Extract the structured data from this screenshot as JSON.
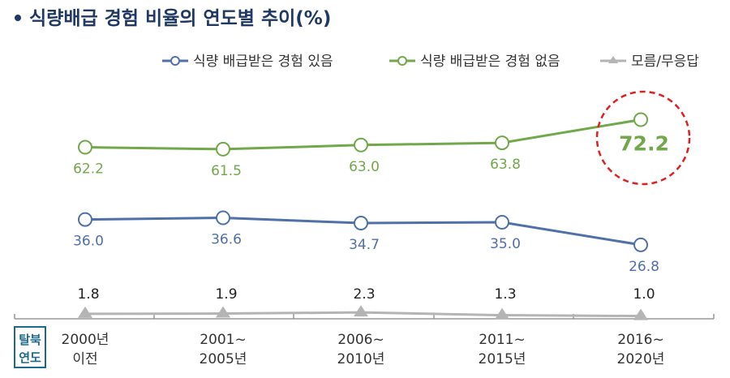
{
  "chart_data": {
    "type": "line",
    "title": "식량배급 경험 비율의 연도별 추이(%)",
    "xlabel": "탈북 연도",
    "categories": [
      "2000년\n이전",
      "2001~\n2005년",
      "2006~\n2010년",
      "2011~\n2015년",
      "2016~\n2020년"
    ],
    "series": [
      {
        "name": "식량 배급받은 경험 있음",
        "color": "#4f70a8",
        "marker": "circle",
        "values": [
          36.0,
          36.6,
          34.7,
          35.0,
          26.8
        ]
      },
      {
        "name": "식량 배급받은 경험 없음",
        "color": "#70a84a",
        "marker": "circle",
        "values": [
          62.2,
          61.5,
          63.0,
          63.8,
          72.2
        ]
      },
      {
        "name": "모름/무응답",
        "color": "#b4b4b4",
        "marker": "triangle",
        "values": [
          1.8,
          1.9,
          2.3,
          1.3,
          1.0
        ]
      }
    ],
    "highlight": {
      "series": 1,
      "index": 4,
      "color": "#e02020"
    },
    "legend": "top-right",
    "grid": false
  }
}
